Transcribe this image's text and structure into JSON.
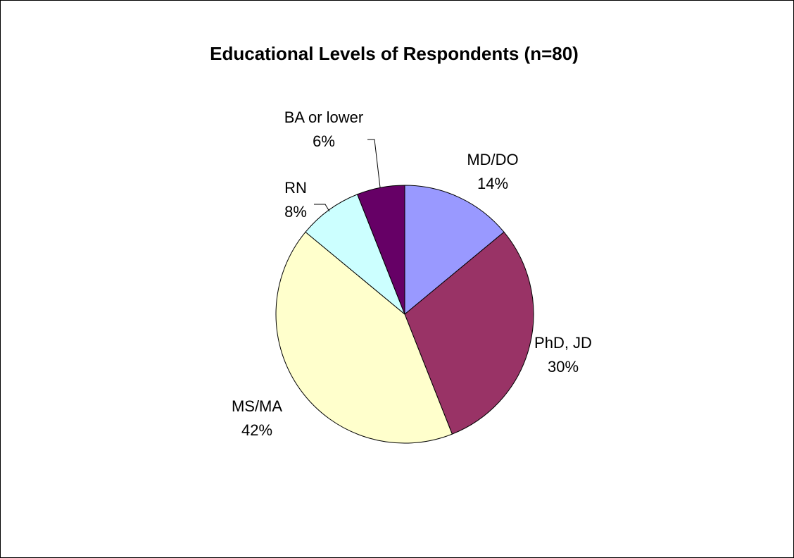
{
  "chart_data": {
    "type": "pie",
    "title": "Educational Levels of Respondents (n=80)",
    "categories": [
      "MD/DO",
      "PhD, JD",
      "MS/MA",
      "RN",
      "BA or lower"
    ],
    "values": [
      14,
      30,
      42,
      8,
      6
    ],
    "value_labels": [
      "14%",
      "30%",
      "42%",
      "8%",
      "6%"
    ],
    "colors": [
      "#9999ff",
      "#993366",
      "#ffffcc",
      "#ccffff",
      "#660066"
    ]
  }
}
